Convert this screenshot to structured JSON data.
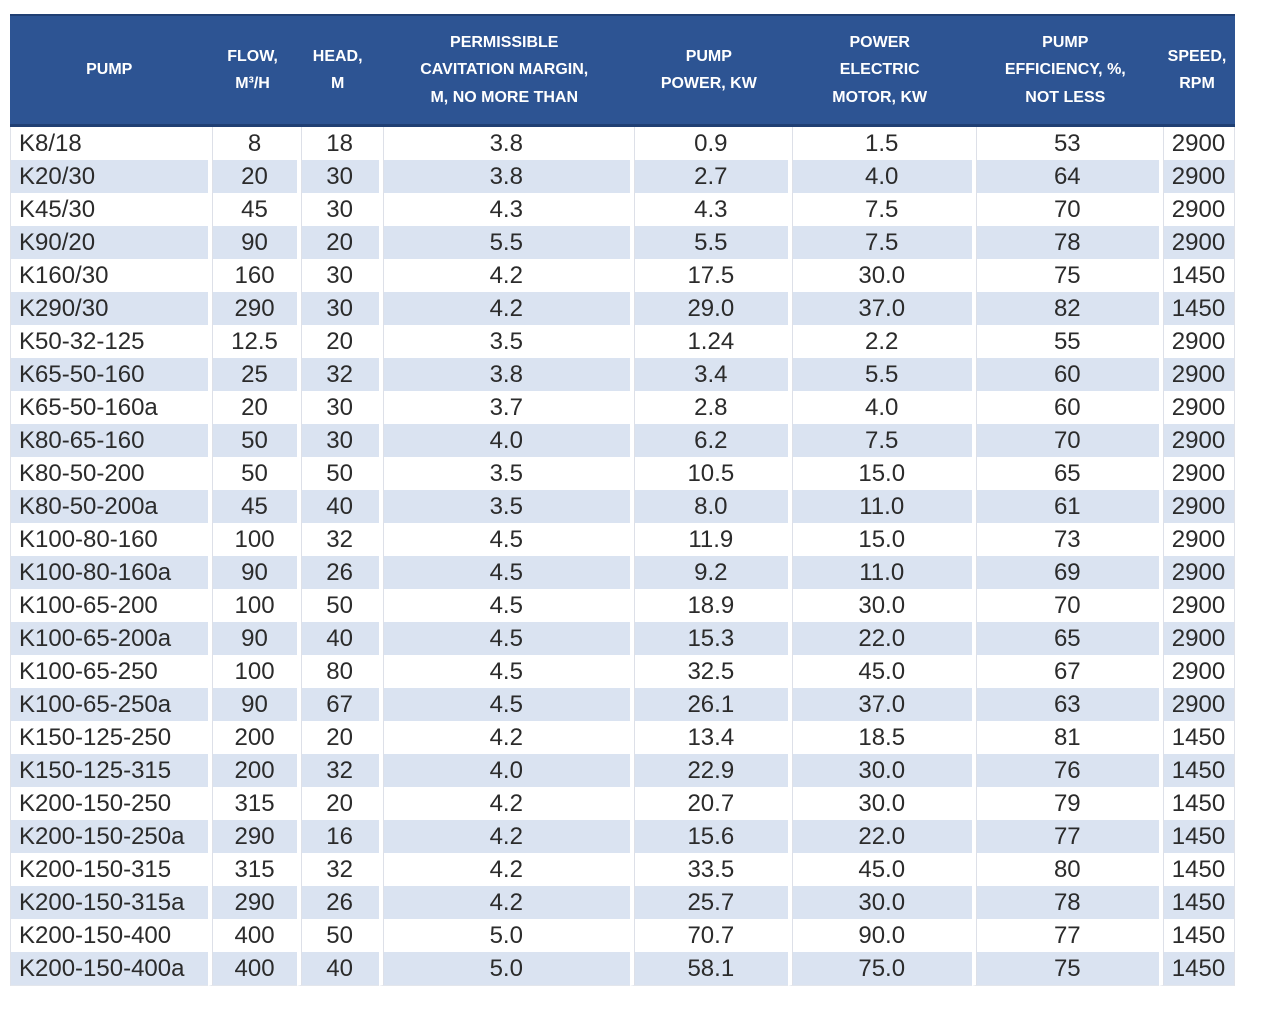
{
  "colors": {
    "header_bg": "#2d5493",
    "header_text": "#ffffff",
    "stripe_row_bg": "#dae3f1",
    "body_text": "#2b2b2b",
    "grid_line": "#dde0e8"
  },
  "chart_data": {
    "type": "table",
    "title": "",
    "columns": [
      {
        "id": "pump",
        "label": "PUMP"
      },
      {
        "id": "flow_m3h",
        "label": "FLOW,\nM³/H"
      },
      {
        "id": "head_m",
        "label": "HEAD,\nM"
      },
      {
        "id": "cavitation_margin",
        "label": "PERMISSIBLE\nCAVITATION MARGIN,\nM, NO MORE THAN"
      },
      {
        "id": "pump_power_kw",
        "label": "PUMP\nPOWER, KW"
      },
      {
        "id": "motor_power_kw",
        "label": "POWER\nELECTRIC\nMOTOR, KW"
      },
      {
        "id": "efficiency_pct",
        "label": "PUMP\nEFFICIENCY, %,\nNOT LESS"
      },
      {
        "id": "speed_rpm",
        "label": "SPEED,\nRPM"
      }
    ],
    "rows": [
      [
        "K8/18",
        "8",
        "18",
        "3.8",
        "0.9",
        "1.5",
        "53",
        "2900"
      ],
      [
        "K20/30",
        "20",
        "30",
        "3.8",
        "2.7",
        "4.0",
        "64",
        "2900"
      ],
      [
        "K45/30",
        "45",
        "30",
        "4.3",
        "4.3",
        "7.5",
        "70",
        "2900"
      ],
      [
        "K90/20",
        "90",
        "20",
        "5.5",
        "5.5",
        "7.5",
        "78",
        "2900"
      ],
      [
        "K160/30",
        "160",
        "30",
        "4.2",
        "17.5",
        "30.0",
        "75",
        "1450"
      ],
      [
        "K290/30",
        "290",
        "30",
        "4.2",
        "29.0",
        "37.0",
        "82",
        "1450"
      ],
      [
        "K50-32-125",
        "12.5",
        "20",
        "3.5",
        "1.24",
        "2.2",
        "55",
        "2900"
      ],
      [
        "K65-50-160",
        "25",
        "32",
        "3.8",
        "3.4",
        "5.5",
        "60",
        "2900"
      ],
      [
        "K65-50-160a",
        "20",
        "30",
        "3.7",
        "2.8",
        "4.0",
        "60",
        "2900"
      ],
      [
        "K80-65-160",
        "50",
        "30",
        "4.0",
        "6.2",
        "7.5",
        "70",
        "2900"
      ],
      [
        "K80-50-200",
        "50",
        "50",
        "3.5",
        "10.5",
        "15.0",
        "65",
        "2900"
      ],
      [
        "K80-50-200a",
        "45",
        "40",
        "3.5",
        "8.0",
        "11.0",
        "61",
        "2900"
      ],
      [
        "K100-80-160",
        "100",
        "32",
        "4.5",
        "11.9",
        "15.0",
        "73",
        "2900"
      ],
      [
        "K100-80-160a",
        "90",
        "26",
        "4.5",
        "9.2",
        "11.0",
        "69",
        "2900"
      ],
      [
        "K100-65-200",
        "100",
        "50",
        "4.5",
        "18.9",
        "30.0",
        "70",
        "2900"
      ],
      [
        "K100-65-200a",
        "90",
        "40",
        "4.5",
        "15.3",
        "22.0",
        "65",
        "2900"
      ],
      [
        "K100-65-250",
        "100",
        "80",
        "4.5",
        "32.5",
        "45.0",
        "67",
        "2900"
      ],
      [
        "K100-65-250a",
        "90",
        "67",
        "4.5",
        "26.1",
        "37.0",
        "63",
        "2900"
      ],
      [
        "K150-125-250",
        "200",
        "20",
        "4.2",
        "13.4",
        "18.5",
        "81",
        "1450"
      ],
      [
        "K150-125-315",
        "200",
        "32",
        "4.0",
        "22.9",
        "30.0",
        "76",
        "1450"
      ],
      [
        "K200-150-250",
        "315",
        "20",
        "4.2",
        "20.7",
        "30.0",
        "79",
        "1450"
      ],
      [
        "K200-150-250a",
        "290",
        "16",
        "4.2",
        "15.6",
        "22.0",
        "77",
        "1450"
      ],
      [
        "K200-150-315",
        "315",
        "32",
        "4.2",
        "33.5",
        "45.0",
        "80",
        "1450"
      ],
      [
        "K200-150-315a",
        "290",
        "26",
        "4.2",
        "25.7",
        "30.0",
        "78",
        "1450"
      ],
      [
        "K200-150-400",
        "400",
        "50",
        "5.0",
        "70.7",
        "90.0",
        "77",
        "1450"
      ],
      [
        "K200-150-400a",
        "400",
        "40",
        "5.0",
        "58.1",
        "75.0",
        "75",
        "1450"
      ]
    ]
  }
}
